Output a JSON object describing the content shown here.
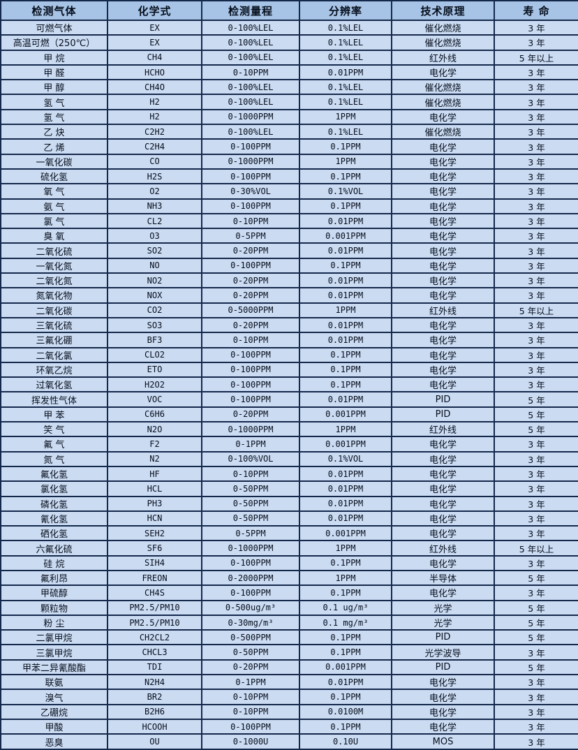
{
  "table": {
    "headers": [
      "检测气体",
      "化学式",
      "检测量程",
      "分辨率",
      "技术原理",
      "寿  命"
    ],
    "column_names": [
      "detected-gas",
      "chemical-formula",
      "detection-range",
      "resolution",
      "technical-principle",
      "lifespan"
    ],
    "rows": [
      [
        "可燃气体",
        "EX",
        "0-100%LEL",
        "0.1%LEL",
        "催化燃烧",
        "3 年"
      ],
      [
        "高温可燃（250℃）",
        "EX",
        "0-100%LEL",
        "0.1%LEL",
        "催化燃烧",
        "3 年"
      ],
      [
        "甲 烷",
        "CH4",
        "0-100%LEL",
        "0.1%LEL",
        "红外线",
        "5 年以上"
      ],
      [
        "甲 醛",
        "HCHO",
        "0-10PPM",
        "0.01PPM",
        "电化学",
        "3 年"
      ],
      [
        "甲 醇",
        "CH4O",
        "0-100%LEL",
        "0.1%LEL",
        "催化燃烧",
        "3 年"
      ],
      [
        "氢 气",
        "H2",
        "0-100%LEL",
        "0.1%LEL",
        "催化燃烧",
        "3 年"
      ],
      [
        "氢 气",
        "H2",
        "0-1000PPM",
        "1PPM",
        "电化学",
        "3 年"
      ],
      [
        "乙 炔",
        "C2H2",
        "0-100%LEL",
        "0.1%LEL",
        "催化燃烧",
        "3 年"
      ],
      [
        "乙 烯",
        "C2H4",
        "0-100PPM",
        "0.1PPM",
        "电化学",
        "3 年"
      ],
      [
        "一氧化碳",
        "CO",
        "0-1000PPM",
        "1PPM",
        "电化学",
        "3 年"
      ],
      [
        "硫化氢",
        "H2S",
        "0-100PPM",
        "0.1PPM",
        "电化学",
        "3 年"
      ],
      [
        "氧 气",
        "O2",
        "0-30%VOL",
        "0.1%VOL",
        "电化学",
        "3 年"
      ],
      [
        "氨 气",
        "NH3",
        "0-100PPM",
        "0.1PPM",
        "电化学",
        "3 年"
      ],
      [
        "氯 气",
        "CL2",
        "0-10PPM",
        "0.01PPM",
        "电化学",
        "3 年"
      ],
      [
        "臭 氧",
        "O3",
        "0-5PPM",
        "0.001PPM",
        "电化学",
        "3 年"
      ],
      [
        "二氧化硫",
        "SO2",
        "0-20PPM",
        "0.01PPM",
        "电化学",
        "3 年"
      ],
      [
        "一氧化氮",
        "NO",
        "0-100PPM",
        "0.1PPM",
        "电化学",
        "3 年"
      ],
      [
        "二氧化氮",
        "NO2",
        "0-20PPM",
        "0.01PPM",
        "电化学",
        "3 年"
      ],
      [
        "氮氧化物",
        "NOX",
        "0-20PPM",
        "0.01PPM",
        "电化学",
        "3 年"
      ],
      [
        "二氧化碳",
        "CO2",
        "0-5000PPM",
        "1PPM",
        "红外线",
        "5 年以上"
      ],
      [
        "三氧化硫",
        "SO3",
        "0-20PPM",
        "0.01PPM",
        "电化学",
        "3 年"
      ],
      [
        "三氟化硼",
        "BF3",
        "0-10PPM",
        "0.01PPM",
        "电化学",
        "3 年"
      ],
      [
        "二氧化氯",
        "CLO2",
        "0-100PPM",
        "0.1PPM",
        "电化学",
        "3 年"
      ],
      [
        "环氧乙烷",
        "ETO",
        "0-100PPM",
        "0.1PPM",
        "电化学",
        "3 年"
      ],
      [
        "过氧化氢",
        "H2O2",
        "0-100PPM",
        "0.1PPM",
        "电化学",
        "3 年"
      ],
      [
        "挥发性气体",
        "VOC",
        "0-100PPM",
        "0.01PPM",
        "PID",
        "5 年"
      ],
      [
        "甲 苯",
        "C6H6",
        "0-20PPM",
        "0.001PPM",
        "PID",
        "5 年"
      ],
      [
        "笑 气",
        "N2O",
        "0-1000PPM",
        "1PPM",
        "红外线",
        "5 年"
      ],
      [
        "氟 气",
        "F2",
        "0-1PPM",
        "0.001PPM",
        "电化学",
        "3 年"
      ],
      [
        "氮 气",
        "N2",
        "0-100%VOL",
        "0.1%VOL",
        "电化学",
        "3 年"
      ],
      [
        "氟化氢",
        "HF",
        "0-10PPM",
        "0.01PPM",
        "电化学",
        "3 年"
      ],
      [
        "氯化氢",
        "HCL",
        "0-50PPM",
        "0.01PPM",
        "电化学",
        "3 年"
      ],
      [
        "磷化氢",
        "PH3",
        "0-50PPM",
        "0.01PPM",
        "电化学",
        "3 年"
      ],
      [
        "氰化氢",
        "HCN",
        "0-50PPM",
        "0.01PPM",
        "电化学",
        "3 年"
      ],
      [
        "硒化氢",
        "SEH2",
        "0-5PPM",
        "0.001PPM",
        "电化学",
        "3 年"
      ],
      [
        "六氟化硫",
        "SF6",
        "0-1000PPM",
        "1PPM",
        "红外线",
        "5 年以上"
      ],
      [
        "硅 烷",
        "SIH4",
        "0-100PPM",
        "0.1PPM",
        "电化学",
        "3 年"
      ],
      [
        "氟利昂",
        "FREON",
        "0-2000PPM",
        "1PPM",
        "半导体",
        "5 年"
      ],
      [
        "甲硫醇",
        "CH4S",
        "0-100PPM",
        "0.1PPM",
        "电化学",
        "3 年"
      ],
      [
        "颗粒物",
        "PM2.5/PM10",
        "0-500ug/m³",
        "0.1 ug/m³",
        "光学",
        "5 年"
      ],
      [
        "粉 尘",
        "PM2.5/PM10",
        "0-30mg/m³",
        "0.1 mg/m³",
        "光学",
        "5 年"
      ],
      [
        "二氯甲烷",
        "CH2CL2",
        "0-500PPM",
        "0.1PPM",
        "PID",
        "5 年"
      ],
      [
        "三氯甲烷",
        "CHCL3",
        "0-50PPM",
        "0.1PPM",
        "光学波导",
        "3 年"
      ],
      [
        "甲苯二异氰酸酯",
        "TDI",
        "0-20PPM",
        "0.001PPM",
        "PID",
        "5 年"
      ],
      [
        "联氨",
        "N2H4",
        "0-1PPM",
        "0.01PPM",
        "电化学",
        "3 年"
      ],
      [
        "溴气",
        "BR2",
        "0-10PPM",
        "0.1PPM",
        "电化学",
        "3 年"
      ],
      [
        "乙硼烷",
        "B2H6",
        "0-10PPM",
        "0.0100M",
        "电化学",
        "3 年"
      ],
      [
        "甲酸",
        "HCOOH",
        "0-100PPM",
        "0.1PPM",
        "电化学",
        "3 年"
      ],
      [
        "恶臭",
        "OU",
        "0-1000U",
        "0.10U",
        "MOS",
        "3 年"
      ]
    ]
  },
  "colors": {
    "header_bg": "#a7c4e6",
    "row_bg": "#cbdbf2",
    "border": "#14284b",
    "text": "#060e1c"
  }
}
